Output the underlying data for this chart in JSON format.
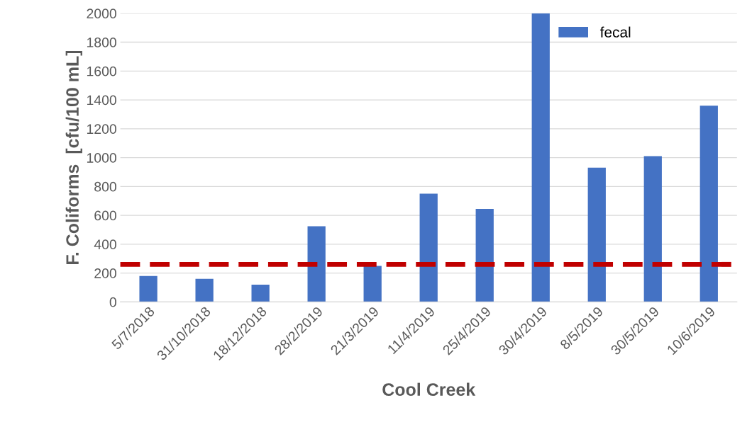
{
  "chart_data": {
    "type": "bar",
    "xlabel": "Cool Creek",
    "ylabel": "F. Coliforms  [cfu/100 mL]",
    "categories": [
      "5/7/2018",
      "31/10/2018",
      "18/12/2018",
      "28/2/2019",
      "21/3/2019",
      "11/4/2019",
      "25/4/2019",
      "30/4/2019",
      "8/5/2019",
      "30/5/2019",
      "10/6/2019"
    ],
    "series": [
      {
        "name": "fecal",
        "color": "#4472c4",
        "values": [
          180,
          160,
          120,
          525,
          250,
          750,
          645,
          2000,
          930,
          1010,
          1360
        ]
      }
    ],
    "ylim": [
      0,
      2000
    ],
    "yticks": [
      0,
      200,
      400,
      600,
      800,
      1000,
      1200,
      1400,
      1600,
      1800,
      2000
    ],
    "ref_lines": [
      {
        "axis": "y",
        "value": 260,
        "color": "#c00000",
        "line_style": "dashed"
      }
    ],
    "grid": "y",
    "legend": "top right"
  }
}
